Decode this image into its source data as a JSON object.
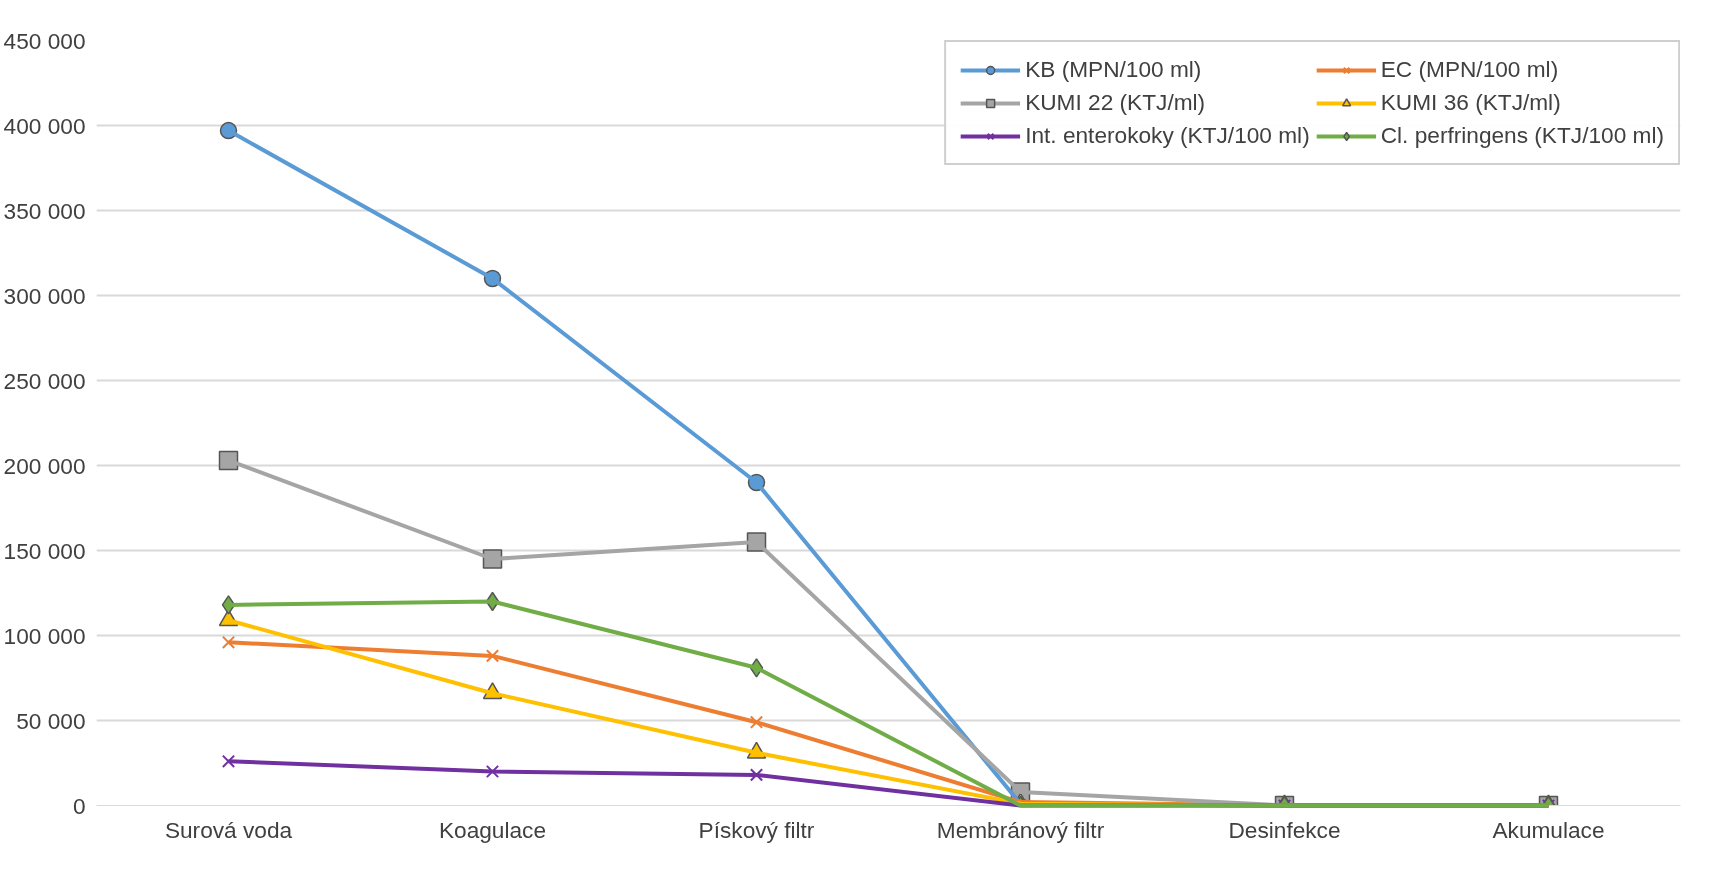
{
  "chart_data": {
    "type": "line",
    "categories": [
      "Surová voda",
      "Koagulace",
      "Pískový filtr",
      "Membránový filtr",
      "Desinfekce",
      "Akumulace"
    ],
    "series": [
      {
        "name": "KB (MPN/100 ml)",
        "color": "#5b9bd5",
        "marker": "circle",
        "values": [
          397000,
          310000,
          190000,
          1000,
          0,
          0
        ]
      },
      {
        "name": "EC (MPN/100 ml)",
        "color": "#ed7d31",
        "marker": "cross",
        "values": [
          96000,
          88000,
          49000,
          2000,
          0,
          0
        ]
      },
      {
        "name": "KUMI 22 (KTJ/ml)",
        "color": "#a5a5a5",
        "marker": "square",
        "values": [
          203000,
          145000,
          155000,
          8000,
          0,
          0
        ]
      },
      {
        "name": "KUMI 36 (KTJ/ml)",
        "color": "#ffc000",
        "marker": "triangle",
        "values": [
          109000,
          66000,
          31000,
          1000,
          0,
          0
        ]
      },
      {
        "name": "Int. enterokoky (KTJ/100 ml)",
        "color": "#7030a0",
        "marker": "cross",
        "values": [
          26000,
          20000,
          18000,
          0,
          0,
          0
        ]
      },
      {
        "name": "Cl. perfringens (KTJ/100 ml)",
        "color": "#70ad47",
        "marker": "diamond",
        "values": [
          118000,
          120000,
          81000,
          0,
          0,
          0
        ]
      }
    ],
    "ylim": [
      0,
      450000
    ],
    "yticks": [
      0,
      {
        "value": 50000,
        "label": "50 000"
      },
      {
        "value": 100000,
        "label": "100 000"
      },
      {
        "value": 150000,
        "label": "150 000"
      },
      {
        "value": 200000,
        "label": "200 000"
      },
      {
        "value": 250000,
        "label": "250 000"
      },
      {
        "value": 300000,
        "label": "300 000"
      },
      {
        "value": 350000,
        "label": "350 000"
      },
      {
        "value": 400000,
        "label": "400 000"
      },
      {
        "value": 450000,
        "label": "450 000"
      }
    ],
    "grid": "y",
    "legend": "top right",
    "line_style": "solid"
  }
}
